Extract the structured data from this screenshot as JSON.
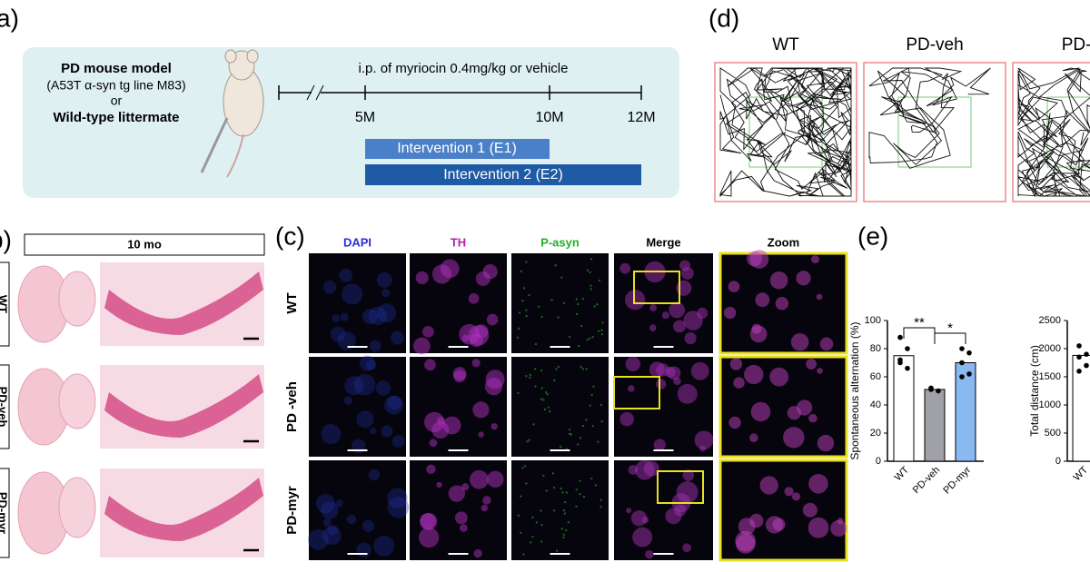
{
  "panel_a": {
    "label": "a)",
    "model_title": "PD mouse model",
    "model_line": "(A53T α-syn tg line M83)",
    "or": "or",
    "wild_type": "Wild-type littermate",
    "treatment": "i.p. of myriocin 0.4mg/kg or vehicle",
    "timepoints": [
      "5M",
      "10M",
      "12M"
    ],
    "interventions": [
      "Intervention 1 (E1)",
      "Intervention 2 (E2)"
    ]
  },
  "panel_b": {
    "label": "b)",
    "header": "10 mo",
    "rows": [
      "WT",
      "PD-veh",
      "PD-myr"
    ]
  },
  "panel_c": {
    "label": "(c)",
    "columns": [
      "DAPI",
      "TH",
      "P-asyn",
      "Merge",
      "Zoom"
    ],
    "column_colors": [
      "#2a2ae0",
      "#b020b0",
      "#20b020",
      "#000000",
      "#000000"
    ],
    "rows": [
      "WT",
      "PD -veh",
      "PD-myr"
    ]
  },
  "panel_d": {
    "label": "(d)",
    "groups": [
      "WT",
      "PD-veh",
      "PD-m"
    ]
  },
  "panel_e": {
    "label": "(e)"
  },
  "chart_data": [
    {
      "type": "bar",
      "ylabel": "Spontaneous alternation (%)",
      "categories": [
        "WT",
        "PD-veh",
        "PD-myr"
      ],
      "values": [
        75,
        51,
        70
      ],
      "colors": [
        "#ffffff",
        "#a0a0a8",
        "#8ab8f0"
      ],
      "points": [
        [
          88,
          80,
          70,
          66,
          72
        ],
        [
          51,
          50,
          52
        ],
        [
          80,
          77,
          70,
          62,
          60
        ]
      ],
      "ylim": [
        0,
        100
      ],
      "yticks": [
        0,
        20,
        40,
        60,
        80,
        100
      ],
      "significance": [
        "**",
        "*"
      ]
    },
    {
      "type": "bar",
      "ylabel": "Total distance (cm)",
      "categories": [
        "WT"
      ],
      "values": [
        1880
      ],
      "colors": [
        "#ffffff"
      ],
      "points": [
        [
          2050,
          1900,
          1850,
          1700,
          1600
        ]
      ],
      "ylim": [
        0,
        2500
      ],
      "yticks": [
        0,
        500,
        1000,
        1500,
        2000,
        2500
      ]
    }
  ]
}
